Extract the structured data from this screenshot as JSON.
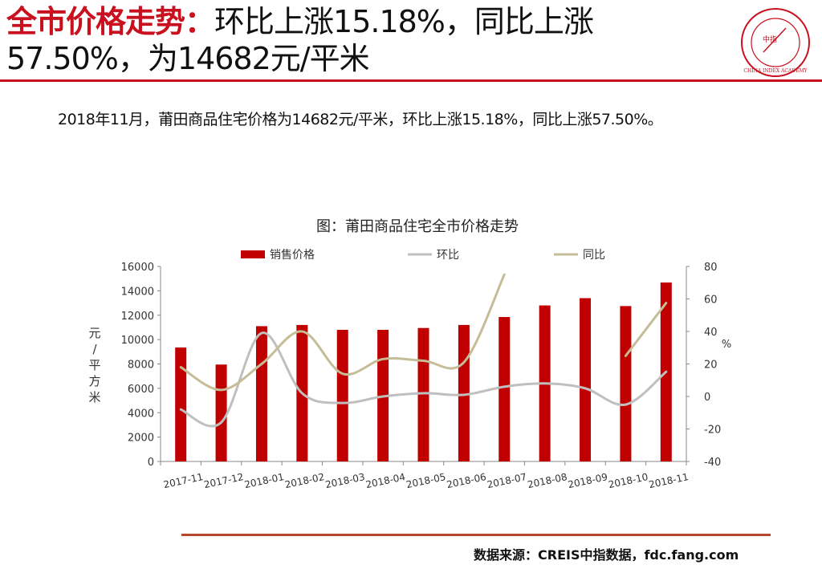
{
  "header": {
    "title_red": "全市价格走势：",
    "title_rest": "环比上涨15.18%，同比上涨57.50%，为14682元/平米"
  },
  "logo": {
    "center_text": "中指",
    "ring_text": "CHINA INDEX ACADEMY",
    "color": "#c8101e"
  },
  "summary": {
    "text": "2018年11月，莆田商品住宅价格为14682元/平米，环比上涨15.18%，同比上涨57.50%。"
  },
  "source": {
    "text": "数据来源：CREIS中指数据，fdc.fang.com"
  },
  "colors": {
    "accent_red": "#c8101e",
    "bar_red": "#c00000",
    "mom_gray": "#bfbfbf",
    "yoy_tan": "#c4bd97",
    "rule_brown": "#b5462a"
  },
  "chart_data": {
    "type": "bar",
    "title": "图：莆田商品住宅全市价格走势",
    "categories": [
      "2017-11",
      "2017-12",
      "2018-01",
      "2018-02",
      "2018-03",
      "2018-04",
      "2018-05",
      "2018-06",
      "2018-07",
      "2018-08",
      "2018-09",
      "2018-10",
      "2018-11"
    ],
    "series": [
      {
        "name": "销售价格",
        "type": "bar",
        "axis": "left",
        "values": [
          9350,
          7950,
          11100,
          11200,
          10800,
          10800,
          10950,
          11200,
          11850,
          12800,
          13400,
          12750,
          14682
        ]
      },
      {
        "name": "环比",
        "type": "line",
        "axis": "right",
        "values": [
          -8,
          -16,
          39,
          2,
          -4,
          0,
          2,
          1,
          6,
          8,
          5,
          -5,
          15.18
        ]
      },
      {
        "name": "同比",
        "type": "line",
        "axis": "right",
        "values": [
          18,
          4,
          20,
          40,
          14,
          23,
          22,
          21,
          75,
          null,
          null,
          25,
          57.5
        ]
      }
    ],
    "y_left": {
      "label": "元/平方米",
      "ylim": [
        0,
        16000
      ],
      "ticks": [
        0,
        2000,
        4000,
        6000,
        8000,
        10000,
        12000,
        14000,
        16000
      ]
    },
    "y_right": {
      "label": "%",
      "ylim": [
        -40,
        80
      ],
      "ticks": [
        -40,
        -20,
        0,
        20,
        40,
        60,
        80
      ]
    },
    "grid": false,
    "legend": "top"
  }
}
